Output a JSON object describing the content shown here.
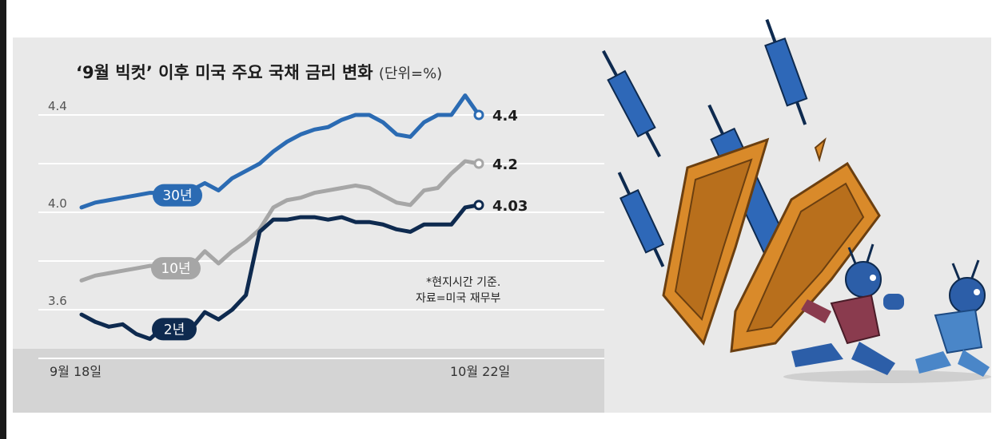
{
  "title": "‘9월 빅컷’ 이후 미국 주요 국채 금리 변화",
  "unit": "(단위=%)",
  "note": [
    "*현지시간 기준.",
    "자료=미국 재무부"
  ],
  "x_labels": [
    "9월 18일",
    "10월 22일"
  ],
  "chart_data": {
    "type": "line",
    "title": "‘9월 빅컷’ 이후 미국 주요 국채 금리 변화",
    "ylabel": "(단위=%)",
    "yticks": [
      4.4,
      4.0,
      3.6
    ],
    "ylim": [
      3.4,
      4.6
    ],
    "x_start": "9월 18일",
    "x_end": "10월 22일",
    "grid": true,
    "series": [
      {
        "name": "30년",
        "color": "#2b6bb3",
        "end_label": "4.4",
        "values": [
          4.02,
          4.04,
          4.05,
          4.06,
          4.07,
          4.08,
          4.08,
          4.09,
          4.09,
          4.12,
          4.09,
          4.14,
          4.17,
          4.2,
          4.25,
          4.29,
          4.32,
          4.34,
          4.35,
          4.38,
          4.4,
          4.4,
          4.37,
          4.32,
          4.31,
          4.37,
          4.4,
          4.4,
          4.48,
          4.4
        ]
      },
      {
        "name": "10년",
        "color": "#a6a6a6",
        "end_label": "4.2",
        "values": [
          3.72,
          3.74,
          3.75,
          3.76,
          3.77,
          3.78,
          3.78,
          3.79,
          3.78,
          3.84,
          3.79,
          3.84,
          3.88,
          3.93,
          4.02,
          4.05,
          4.06,
          4.08,
          4.09,
          4.1,
          4.11,
          4.1,
          4.07,
          4.04,
          4.03,
          4.09,
          4.1,
          4.16,
          4.21,
          4.2
        ]
      },
      {
        "name": "2년",
        "color": "#0e2a4f",
        "end_label": "4.03",
        "values": [
          3.58,
          3.55,
          3.53,
          3.54,
          3.5,
          3.48,
          3.53,
          3.53,
          3.52,
          3.59,
          3.56,
          3.6,
          3.66,
          3.92,
          3.97,
          3.97,
          3.98,
          3.98,
          3.97,
          3.98,
          3.96,
          3.96,
          3.95,
          3.93,
          3.92,
          3.95,
          3.95,
          3.95,
          4.02,
          4.03
        ]
      }
    ]
  }
}
